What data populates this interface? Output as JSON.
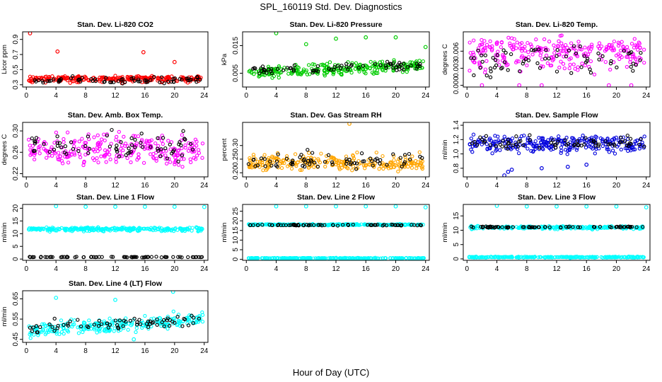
{
  "figure": {
    "title": "SPL_160119  Std. Dev. Diagnostics",
    "xlabel": "Hour of Day (UTC)"
  },
  "chart_data": [
    {
      "type": "scatter",
      "title": "Stan. Dev. Li-820 CO2",
      "xlabel": "",
      "ylabel": "Licor ppm",
      "xlim": [
        -0.5,
        24.5
      ],
      "ylim": [
        0.27,
        1.0
      ],
      "xticks": [
        "0",
        "4",
        "8",
        "12",
        "16",
        "20",
        "24"
      ],
      "yticks": [
        "0.3",
        "0.5",
        "0.7",
        "0.9"
      ],
      "series": [
        {
          "color": "#ff0000",
          "band": [
            0.31,
            0.38,
            0.43
          ],
          "outliers": [
            [
              0.5,
              0.98
            ],
            [
              4.2,
              0.74
            ],
            [
              15.8,
              0.73
            ],
            [
              20.0,
              0.6
            ]
          ]
        },
        {
          "color": "#000000",
          "band": [
            0.31,
            0.36,
            0.43
          ]
        }
      ]
    },
    {
      "type": "scatter",
      "title": "Stan. Dev. Li-820 Pressure",
      "xlabel": "",
      "ylabel": "kPa",
      "xlim": [
        -0.5,
        24.5
      ],
      "ylim": [
        0.0,
        0.02
      ],
      "xticks": [
        "0",
        "4",
        "8",
        "12",
        "16",
        "20",
        "24"
      ],
      "yticks": [
        "0.005",
        "0.015"
      ],
      "series": [
        {
          "color": "#00cc00",
          "band": [
            0.0035,
            0.0065,
            0.0095
          ],
          "trend": 0.00012,
          "outliers": [
            [
              4.0,
              0.0195
            ],
            [
              8.0,
              0.0155
            ],
            [
              12.0,
              0.0175
            ],
            [
              16.0,
              0.018
            ],
            [
              20.0,
              0.018
            ],
            [
              24.0,
              0.0145
            ]
          ]
        },
        {
          "color": "#000000",
          "band": [
            0.004,
            0.0068,
            0.009
          ],
          "trend": 0.0001
        }
      ]
    },
    {
      "type": "scatter",
      "title": "Stan. Dev. Li-820 Temp.",
      "xlabel": "",
      "ylabel": "degrees C",
      "xlim": [
        -0.5,
        24.5
      ],
      "ylim": [
        -0.0003,
        0.0094
      ],
      "xticks": [
        "0",
        "4",
        "8",
        "12",
        "16",
        "20",
        "24"
      ],
      "yticks": [
        "0.000",
        "0.003",
        "0.006"
      ],
      "series": [
        {
          "color": "#ff00ff",
          "band": [
            0.0,
            0.006,
            0.0092
          ],
          "outliers": [
            [
              2.0,
              0.0
            ],
            [
              7.0,
              0.0
            ],
            [
              10.0,
              0.0
            ],
            [
              19.0,
              0.0
            ],
            [
              22.0,
              0.0
            ]
          ]
        },
        {
          "color": "#000000",
          "band": [
            0.0,
            0.005,
            0.0075
          ]
        }
      ]
    },
    {
      "type": "scatter",
      "title": "Stan. Dev. Amb. Box Temp.",
      "xlabel": "",
      "ylabel": "degrees C",
      "xlim": [
        -0.5,
        24.5
      ],
      "ylim": [
        0.214,
        0.316
      ],
      "xticks": [
        "0",
        "4",
        "8",
        "12",
        "16",
        "20",
        "24"
      ],
      "yticks": [
        "0.22",
        "0.26",
        "0.30"
      ],
      "series": [
        {
          "color": "#ff00ff",
          "band": [
            0.22,
            0.265,
            0.31
          ]
        },
        {
          "color": "#000000",
          "band": [
            0.235,
            0.27,
            0.31
          ]
        }
      ]
    },
    {
      "type": "scatter",
      "title": "Stan. Dev. Gas Stream RH",
      "xlabel": "",
      "ylabel": "percent",
      "xlim": [
        -0.5,
        24.5
      ],
      "ylim": [
        0.185,
        0.385
      ],
      "xticks": [
        "0",
        "4",
        "8",
        "12",
        "16",
        "20",
        "24"
      ],
      "yticks": [
        "0.20",
        "0.25",
        "0.30"
      ],
      "series": [
        {
          "color": "#ffa500",
          "band": [
            0.2,
            0.235,
            0.285
          ],
          "outliers": [
            [
              13.8,
              0.38
            ]
          ]
        },
        {
          "color": "#000000",
          "band": [
            0.21,
            0.24,
            0.3
          ]
        }
      ]
    },
    {
      "type": "scatter",
      "title": "Stan. Dev. Sample Flow",
      "xlabel": "",
      "ylabel": "ml/min",
      "xlim": [
        -0.5,
        24.5
      ],
      "ylim": [
        0.68,
        1.44
      ],
      "xticks": [
        "0",
        "4",
        "8",
        "12",
        "16",
        "20",
        "24"
      ],
      "yticks": [
        "0.8",
        "1.0",
        "1.2",
        "1.4"
      ],
      "series": [
        {
          "color": "#0000dd",
          "band": [
            0.95,
            1.15,
            1.3
          ],
          "outliers": [
            [
              5.0,
              0.7
            ],
            [
              5.5,
              0.75
            ],
            [
              6.0,
              0.78
            ],
            [
              10.0,
              0.8
            ],
            [
              13.5,
              0.82
            ],
            [
              16.0,
              0.85
            ]
          ]
        },
        {
          "color": "#000000",
          "band": [
            1.05,
            1.15,
            1.28
          ]
        }
      ]
    },
    {
      "type": "scatter",
      "title": "Stan. Dev. Line 1 Flow",
      "xlabel": "",
      "ylabel": "ml/min",
      "xlim": [
        -0.5,
        24.5
      ],
      "ylim": [
        -0.5,
        21.5
      ],
      "xticks": [
        "0",
        "4",
        "8",
        "12",
        "16",
        "20",
        "24"
      ],
      "yticks": [
        "0",
        "5",
        "10",
        "15",
        "20"
      ],
      "series": [
        {
          "color": "#00ffff",
          "band": [
            10.5,
            11.8,
            12.8
          ],
          "outliers": [
            [
              4.0,
              20.8
            ],
            [
              8.0,
              20.6
            ],
            [
              12.0,
              20.6
            ],
            [
              16.0,
              20.6
            ],
            [
              20.0,
              20.6
            ],
            [
              24.0,
              20.5
            ]
          ]
        },
        {
          "color": "#000000",
          "band": [
            0.6,
            0.8,
            1.0
          ]
        }
      ]
    },
    {
      "type": "scatter",
      "title": "Stan. Dev. Line 2 Flow",
      "xlabel": "",
      "ylabel": "ml/min",
      "xlim": [
        -0.5,
        24.5
      ],
      "ylim": [
        -0.5,
        28.5
      ],
      "xticks": [
        "0",
        "4",
        "8",
        "12",
        "16",
        "20",
        "24"
      ],
      "yticks": [
        "0",
        "5",
        "10",
        "15",
        "20",
        "25"
      ],
      "series": [
        {
          "color": "#00ffff",
          "band": [
            17.5,
            18.0,
            18.5
          ],
          "outliers": [
            [
              4.0,
              27.5
            ],
            [
              8.0,
              27.5
            ],
            [
              12.0,
              27.5
            ],
            [
              16.0,
              27.5
            ],
            [
              20.0,
              27.5
            ],
            [
              24.0,
              27.0
            ]
          ]
        },
        {
          "color": "#00ffff",
          "band": [
            0.3,
            0.6,
            0.9
          ]
        },
        {
          "color": "#000000",
          "band": [
            17.4,
            17.8,
            18.2
          ]
        }
      ]
    },
    {
      "type": "scatter",
      "title": "Stan. Dev. Line 3 Flow",
      "xlabel": "",
      "ylabel": "ml/min",
      "xlim": [
        -0.5,
        24.5
      ],
      "ylim": [
        -0.5,
        19.0
      ],
      "xticks": [
        "0",
        "4",
        "8",
        "12",
        "16",
        "20",
        "24"
      ],
      "yticks": [
        "0",
        "5",
        "10",
        "15"
      ],
      "series": [
        {
          "color": "#00ffff",
          "band": [
            10.2,
            11.0,
            11.6
          ],
          "outliers": [
            [
              4.0,
              18.5
            ],
            [
              8.0,
              18.3
            ],
            [
              12.0,
              18.3
            ],
            [
              16.0,
              18.3
            ],
            [
              20.0,
              18.3
            ],
            [
              24.0,
              18.0
            ]
          ]
        },
        {
          "color": "#00ffff",
          "band": [
            0.3,
            0.6,
            0.9
          ]
        },
        {
          "color": "#000000",
          "band": [
            10.8,
            11.1,
            11.4
          ]
        }
      ]
    },
    {
      "type": "scatter",
      "title": "Stan. Dev. Line 4 (LT) Flow",
      "xlabel": "",
      "ylabel": "ml/min",
      "xlim": [
        -0.5,
        24.5
      ],
      "ylim": [
        0.435,
        0.69
      ],
      "xticks": [
        "0",
        "4",
        "8",
        "12",
        "16",
        "20",
        "24"
      ],
      "yticks": [
        "0.45",
        "0.55",
        "0.65"
      ],
      "series": [
        {
          "color": "#00ffff",
          "band": [
            0.47,
            0.52,
            0.58
          ],
          "trend": 0.0025,
          "outliers": [
            [
              4.0,
              0.655
            ],
            [
              12.0,
              0.645
            ],
            [
              19.8,
              0.685
            ],
            [
              14.5,
              0.45
            ]
          ]
        },
        {
          "color": "#000000",
          "band": [
            0.48,
            0.53,
            0.57
          ],
          "trend": 0.002
        }
      ]
    }
  ]
}
